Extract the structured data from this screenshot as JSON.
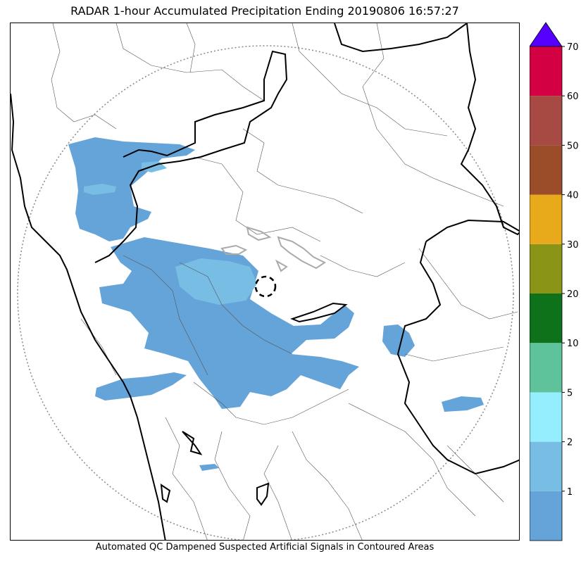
{
  "title": "RADAR 1-hour Accumulated Precipitation Ending 20190806 16:57:27",
  "footer": "Automated QC Dampened Suspected Artificial Signals in Contoured Areas",
  "colorbar": {
    "extend": "max",
    "extend_color": "#5500ff",
    "bins": [
      {
        "color": "#64a4d8"
      },
      {
        "color": "#78bde4"
      },
      {
        "color": "#95eefe"
      },
      {
        "color": "#5ec39a"
      },
      {
        "color": "#0d7219"
      },
      {
        "color": "#8a9416"
      },
      {
        "color": "#e8a91b"
      },
      {
        "color": "#9a4d28"
      },
      {
        "color": "#a74a44"
      },
      {
        "color": "#d30043"
      }
    ],
    "ticks": [
      "1",
      "2",
      "5",
      "10",
      "20",
      "30",
      "40",
      "50",
      "60",
      "70"
    ]
  },
  "map": {
    "precip_light_color": "#64a4d8",
    "precip_medium_color": "#78bde4",
    "state_border_color": "#000000",
    "district_border_color": "#555555",
    "range_ring_color": "#888888"
  }
}
